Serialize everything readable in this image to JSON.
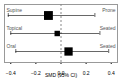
{
  "chart_data": {
    "type": "forest",
    "xlabel": "SMD (95% CI)",
    "categories": [
      "Supine",
      "Topical",
      "Oral"
    ],
    "right_labels": [
      "Prone",
      "Seated",
      "Seated"
    ],
    "values": [
      -0.1,
      -0.03,
      0.06
    ],
    "ci_low": [
      -0.42,
      -0.4,
      -0.36
    ],
    "ci_high": [
      0.27,
      0.31,
      0.38
    ],
    "weights": [
      40,
      15,
      35
    ],
    "reference": 0,
    "color": "#000000",
    "marker": "square",
    "xlim": [
      -0.45,
      0.45
    ],
    "xticks": [
      -0.4,
      -0.2,
      0,
      0.2,
      0.4
    ],
    "tick_labels": "x",
    "grid": false
  }
}
